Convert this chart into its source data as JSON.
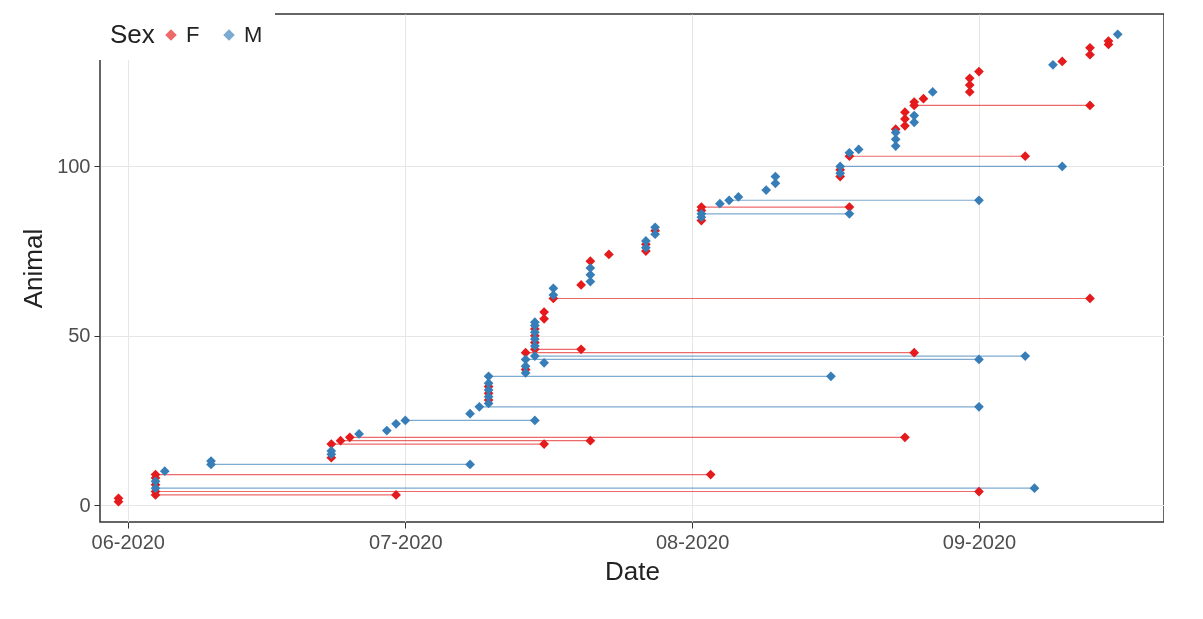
{
  "chart_data": {
    "type": "line",
    "xlabel": "Date",
    "ylabel": "Animal",
    "legend_title": "Sex",
    "xlim": [
      "2020-05-29",
      "2020-09-21"
    ],
    "xticks": [
      {
        "value": "2020-06-01",
        "label": "06-2020"
      },
      {
        "value": "2020-07-01",
        "label": "07-2020"
      },
      {
        "value": "2020-08-01",
        "label": "08-2020"
      },
      {
        "value": "2020-09-01",
        "label": "09-2020"
      }
    ],
    "ylim": [
      -5,
      145
    ],
    "yticks": [
      0,
      50,
      100
    ],
    "grid": true,
    "legend": "top left",
    "marker": "diamond",
    "line_style": "solid",
    "series": [
      {
        "name": "F",
        "color": "#e41a1c",
        "x": [
          "2020-05-31",
          null,
          "2020-05-31",
          null,
          "2020-06-04",
          "2020-06-30",
          null,
          "2020-06-04",
          "2020-09-01",
          null,
          "2020-06-04",
          null,
          "2020-06-04",
          null,
          "2020-06-04",
          "2020-08-03",
          null,
          "2020-06-23",
          null,
          "2020-06-23",
          "2020-07-16",
          null,
          "2020-06-24",
          "2020-07-21",
          null,
          "2020-06-25",
          "2020-08-24",
          null,
          "2020-07-10",
          null,
          "2020-07-10",
          null,
          "2020-07-10",
          null,
          "2020-07-14",
          null,
          "2020-07-14",
          "2020-08-25",
          null,
          "2020-07-15",
          "2020-07-20",
          null,
          "2020-07-15",
          null,
          "2020-07-15",
          null,
          "2020-07-15",
          null,
          "2020-07-16",
          null,
          "2020-07-16",
          null,
          "2020-07-17",
          "2020-09-13",
          null,
          "2020-07-20",
          null,
          "2020-07-21",
          null,
          "2020-07-23",
          null,
          "2020-07-27",
          null,
          "2020-07-27",
          null,
          "2020-07-28",
          null,
          "2020-08-02",
          null,
          "2020-08-02",
          null,
          "2020-08-02",
          "2020-08-18",
          null,
          "2020-08-17",
          null,
          "2020-08-17",
          null,
          "2020-08-18",
          "2020-09-06",
          null,
          "2020-08-23",
          null,
          "2020-08-24",
          null,
          "2020-08-24",
          null,
          "2020-08-24",
          null,
          "2020-08-25",
          "2020-09-13",
          null,
          "2020-08-25",
          null,
          "2020-08-26",
          null,
          "2020-08-31",
          null,
          "2020-08-31",
          null,
          "2020-08-31",
          null,
          "2020-09-01",
          null,
          "2020-09-10",
          null,
          "2020-09-13",
          null,
          "2020-09-13",
          null,
          "2020-09-15",
          null,
          "2020-09-15"
        ],
        "values": [
          1,
          null,
          2,
          null,
          3,
          3,
          null,
          4,
          4,
          null,
          6,
          null,
          8,
          null,
          9,
          9,
          null,
          14,
          null,
          18,
          18,
          null,
          19,
          19,
          null,
          20,
          20,
          null,
          31,
          null,
          33,
          null,
          35,
          null,
          40,
          null,
          45,
          45,
          null,
          46,
          46,
          null,
          48,
          null,
          50,
          null,
          52,
          null,
          55,
          null,
          57,
          null,
          61,
          61,
          null,
          65,
          null,
          72,
          null,
          74,
          null,
          75,
          null,
          77,
          null,
          81,
          null,
          84,
          null,
          87,
          null,
          88,
          88,
          null,
          97,
          null,
          99,
          null,
          103,
          103,
          null,
          111,
          null,
          112,
          null,
          114,
          null,
          116,
          null,
          118,
          118,
          null,
          119,
          null,
          120,
          null,
          122,
          null,
          124,
          null,
          126,
          null,
          128,
          null,
          131,
          null,
          133,
          null,
          135,
          null,
          136,
          null,
          137
        ]
      },
      {
        "name": "M",
        "color": "#377eb8",
        "x": [
          "2020-06-04",
          "2020-09-07",
          null,
          "2020-06-04",
          null,
          "2020-06-05",
          null,
          "2020-06-10",
          "2020-07-08",
          null,
          "2020-06-10",
          null,
          "2020-06-23",
          null,
          "2020-06-23",
          null,
          "2020-06-26",
          null,
          "2020-06-29",
          null,
          "2020-06-30",
          null,
          "2020-07-01",
          "2020-07-15",
          null,
          "2020-07-08",
          null,
          "2020-07-09",
          "2020-09-01",
          null,
          "2020-07-10",
          null,
          "2020-07-10",
          null,
          "2020-07-10",
          null,
          "2020-07-10",
          null,
          "2020-07-10",
          "2020-08-16",
          null,
          "2020-07-14",
          null,
          "2020-07-14",
          null,
          "2020-07-14",
          "2020-09-01",
          null,
          "2020-07-15",
          "2020-09-06",
          null,
          "2020-07-16",
          null,
          "2020-07-15",
          null,
          "2020-07-15",
          null,
          "2020-07-15",
          null,
          "2020-07-15",
          null,
          "2020-07-15",
          null,
          "2020-07-17",
          null,
          "2020-07-17",
          null,
          "2020-07-21",
          null,
          "2020-07-21",
          null,
          "2020-07-21",
          null,
          "2020-07-27",
          null,
          "2020-07-27",
          null,
          "2020-07-28",
          null,
          "2020-07-28",
          null,
          "2020-08-02",
          null,
          "2020-08-02",
          "2020-08-18",
          null,
          "2020-08-04",
          null,
          "2020-08-05",
          "2020-09-01",
          null,
          "2020-08-06",
          null,
          "2020-08-09",
          null,
          "2020-08-10",
          null,
          "2020-08-10",
          null,
          "2020-08-17",
          null,
          "2020-08-17",
          "2020-09-10",
          null,
          "2020-08-18",
          null,
          "2020-08-19",
          null,
          "2020-08-23",
          null,
          "2020-08-23",
          null,
          "2020-08-23",
          null,
          "2020-08-25",
          null,
          "2020-08-25",
          null,
          "2020-08-27",
          null,
          "2020-09-09",
          null,
          "2020-09-16"
        ],
        "values": [
          5,
          5,
          null,
          7,
          null,
          10,
          null,
          12,
          12,
          null,
          13,
          null,
          15,
          null,
          16,
          null,
          21,
          null,
          22,
          null,
          24,
          null,
          25,
          25,
          null,
          27,
          null,
          29,
          29,
          null,
          30,
          null,
          32,
          null,
          34,
          null,
          36,
          null,
          38,
          38,
          null,
          39,
          null,
          41,
          null,
          43,
          43,
          null,
          44,
          44,
          null,
          42,
          null,
          47,
          null,
          49,
          null,
          51,
          null,
          53,
          null,
          54,
          null,
          62,
          null,
          64,
          null,
          66,
          null,
          68,
          null,
          70,
          null,
          76,
          null,
          78,
          null,
          80,
          null,
          82,
          null,
          85,
          null,
          86,
          86,
          null,
          89,
          null,
          90,
          90,
          null,
          91,
          null,
          93,
          null,
          95,
          null,
          97,
          null,
          98,
          null,
          100,
          100,
          null,
          104,
          null,
          105,
          null,
          106,
          null,
          108,
          null,
          110,
          null,
          113,
          null,
          115,
          null,
          122,
          null,
          130,
          null,
          139
        ]
      }
    ]
  }
}
